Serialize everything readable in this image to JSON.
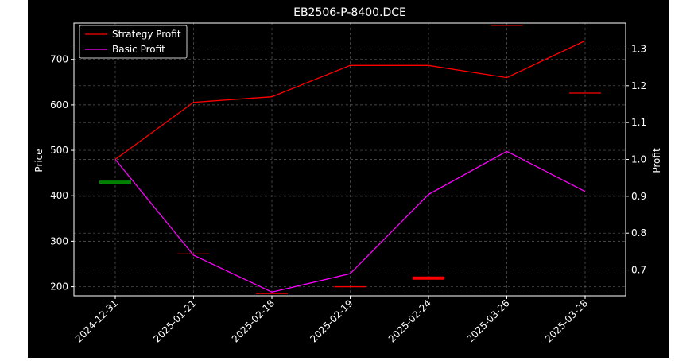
{
  "chart_data": {
    "type": "line",
    "title": "EB2506-P-8400.DCE",
    "xlabel": "",
    "ylabel_left": "Price",
    "ylabel_right": "Profit",
    "categories": [
      "2024-12-31",
      "2025-01-21",
      "2025-02-18",
      "2025-02-19",
      "2025-02-24",
      "2025-03-26",
      "2025-03-28"
    ],
    "y_left_ticks": [
      200,
      300,
      400,
      500,
      600,
      700
    ],
    "y_right_ticks": [
      "0.7",
      "0.8",
      "0.9",
      "1.0",
      "1.1",
      "1.2",
      "1.3"
    ],
    "y_left_lim": [
      180,
      780
    ],
    "y_right_lim": [
      0.63,
      1.37
    ],
    "grid": true,
    "legend_position": "top-left",
    "series": [
      {
        "name": "Strategy Profit",
        "axis": "right",
        "color": "#ff0000",
        "values": [
          1.0,
          1.155,
          1.17,
          1.255,
          1.255,
          1.222,
          1.322
        ]
      },
      {
        "name": "Basic Profit",
        "axis": "right",
        "color": "#ff00ff",
        "values": [
          1.0,
          0.74,
          0.64,
          0.69,
          0.905,
          1.022,
          0.913
        ]
      }
    ],
    "price_markers": [
      {
        "category": "2024-12-31",
        "price": 430,
        "color": "#008000",
        "weight": "thick"
      },
      {
        "category": "2025-01-21",
        "price": 272,
        "color": "#ff0000",
        "weight": "thin"
      },
      {
        "category": "2025-02-18",
        "price": 185,
        "color": "#ff0000",
        "weight": "thin"
      },
      {
        "category": "2025-02-19",
        "price": 200,
        "color": "#ff0000",
        "weight": "thin"
      },
      {
        "category": "2025-02-24",
        "price": 219,
        "color": "#ff0000",
        "weight": "thick"
      },
      {
        "category": "2025-03-26",
        "price": 775,
        "color": "#ff0000",
        "weight": "thin"
      },
      {
        "category": "2025-03-28",
        "price": 626,
        "color": "#ff0000",
        "weight": "thin"
      }
    ]
  }
}
